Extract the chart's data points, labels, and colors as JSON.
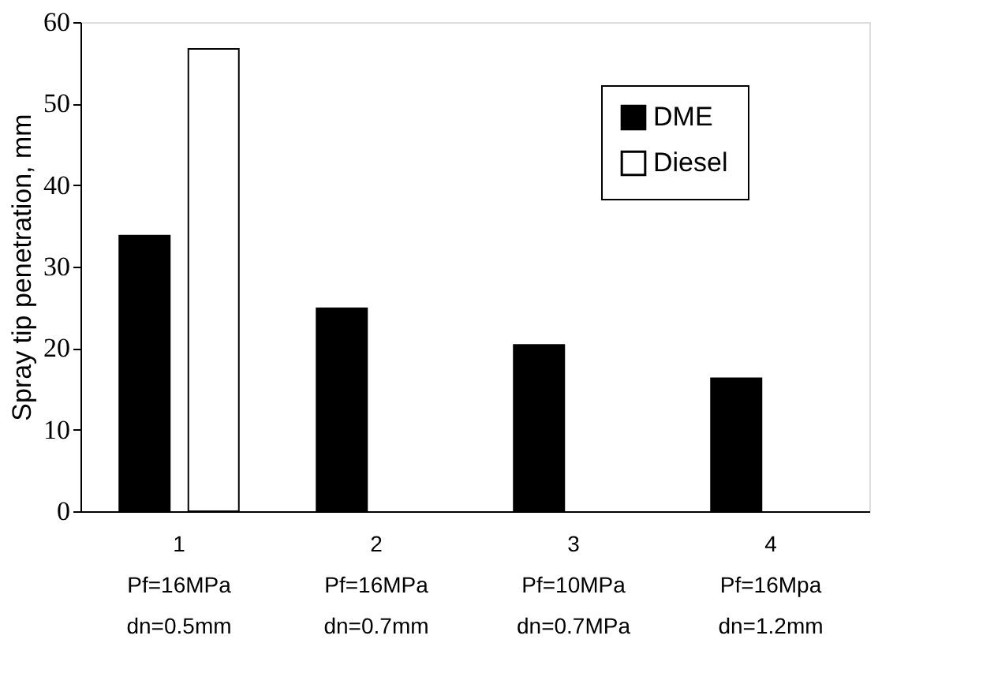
{
  "chart_data": {
    "type": "bar",
    "ylabel": "Spray tip penetration, mm",
    "categories": [
      "1\nPf=16MPa\ndn=0.5mm",
      "2\nPf=16MPa\ndn=0.7mm",
      "3\nPf=10MPa\ndn=0.7MPa",
      "4\nPf=16Mpa\ndn=1.2mm"
    ],
    "series": [
      {
        "name": "DME",
        "color": "#000000",
        "values": [
          33.8,
          24.9,
          20.4,
          16.3
        ]
      },
      {
        "name": "Diesel",
        "color": "#ffffff",
        "values": [
          56.7,
          null,
          null,
          null
        ]
      }
    ],
    "ylim": [
      0,
      60
    ],
    "yticks": [
      0,
      10,
      20,
      30,
      40,
      50,
      60
    ],
    "grid": false,
    "legend": "top right"
  }
}
